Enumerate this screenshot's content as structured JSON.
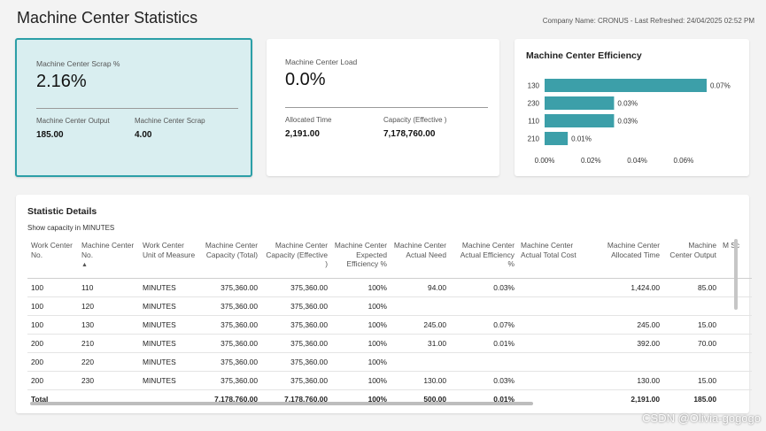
{
  "page": {
    "title": "Machine Center Statistics",
    "header_info": "Company Name: CRONUS - Last Refreshed: 24/04/2025 02:52 PM"
  },
  "scrap_card": {
    "label": "Machine Center Scrap %",
    "value": "2.16%",
    "output_label": "Machine Center Output",
    "output_value": "185.00",
    "scrap_label": "Machine Center Scrap",
    "scrap_value": "4.00"
  },
  "load_card": {
    "label": "Machine Center Load",
    "value": "0.0%",
    "allocated_label": "Allocated Time",
    "allocated_value": "2,191.00",
    "capacity_label": "Capacity (Effective )",
    "capacity_value": "7,178,760.00"
  },
  "chart_data": {
    "type": "bar",
    "orientation": "horizontal",
    "title": "Machine Center Efficiency",
    "categories": [
      "130",
      "230",
      "110",
      "210"
    ],
    "values": [
      0.07,
      0.03,
      0.03,
      0.01
    ],
    "value_labels": [
      "0.07%",
      "0.03%",
      "0.03%",
      "0.01%"
    ],
    "xlim": [
      0,
      0.07
    ],
    "x_ticks": [
      "0.00%",
      "0.02%",
      "0.04%",
      "0.06%"
    ],
    "x_tick_values": [
      0,
      0.02,
      0.04,
      0.06
    ],
    "bar_color": "#3c9fa9",
    "grid": false
  },
  "details": {
    "title": "Statistic Details",
    "subtitle": "Show capacity in MINUTES",
    "columns": [
      "Work Center No.",
      "Machine Center No.",
      "Work Center Unit of Measure",
      "Machine Center Capacity (Total)",
      "Machine Center Capacity (Effective )",
      "Machine Center Expected Efficiency %",
      "Machine Center Actual Need",
      "Machine Center Actual Efficiency %",
      "Machine Center Actual Total Cost",
      "Machine Center Allocated Time",
      "Machine Center Output",
      "M Sc"
    ],
    "rows": [
      [
        "100",
        "110",
        "MINUTES",
        "375,360.00",
        "375,360.00",
        "100%",
        "94.00",
        "0.03%",
        "",
        "1,424.00",
        "85.00",
        ""
      ],
      [
        "100",
        "120",
        "MINUTES",
        "375,360.00",
        "375,360.00",
        "100%",
        "",
        "",
        "",
        "",
        "",
        ""
      ],
      [
        "100",
        "130",
        "MINUTES",
        "375,360.00",
        "375,360.00",
        "100%",
        "245.00",
        "0.07%",
        "",
        "245.00",
        "15.00",
        ""
      ],
      [
        "200",
        "210",
        "MINUTES",
        "375,360.00",
        "375,360.00",
        "100%",
        "31.00",
        "0.01%",
        "",
        "392.00",
        "70.00",
        ""
      ],
      [
        "200",
        "220",
        "MINUTES",
        "375,360.00",
        "375,360.00",
        "100%",
        "",
        "",
        "",
        "",
        "",
        ""
      ],
      [
        "200",
        "230",
        "MINUTES",
        "375,360.00",
        "375,360.00",
        "100%",
        "130.00",
        "0.03%",
        "",
        "130.00",
        "15.00",
        ""
      ]
    ],
    "total": [
      "Total",
      "",
      "",
      "7,178,760.00",
      "7,178,760.00",
      "100%",
      "500.00",
      "0.01%",
      "",
      "2,191.00",
      "185.00",
      ""
    ]
  },
  "watermark": "CSDN @Olivia-gogogo"
}
